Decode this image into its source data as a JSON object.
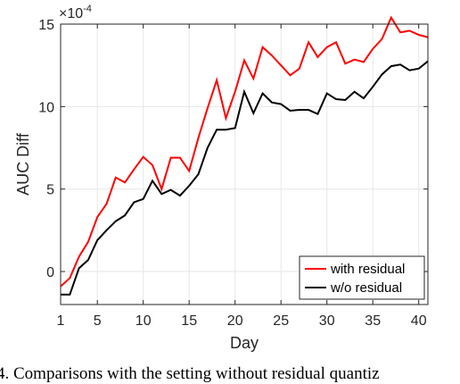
{
  "chart_data": {
    "type": "line",
    "title": "",
    "xlabel": "Day",
    "ylabel": "AUC Diff",
    "y_exponent_label": "×10",
    "y_exponent_power": "-4",
    "xlim": [
      1,
      41
    ],
    "ylim": [
      -2,
      15
    ],
    "x_ticks": [
      1,
      5,
      10,
      15,
      20,
      25,
      30,
      35,
      40
    ],
    "y_ticks": [
      0,
      5,
      10,
      15
    ],
    "grid": true,
    "legend_position": "bottom-right",
    "x": [
      1,
      2,
      3,
      4,
      5,
      6,
      7,
      8,
      9,
      10,
      11,
      12,
      13,
      14,
      15,
      16,
      17,
      18,
      19,
      20,
      21,
      22,
      23,
      24,
      25,
      26,
      27,
      28,
      29,
      30,
      31,
      32,
      33,
      34,
      35,
      36,
      37,
      38,
      39,
      40,
      41
    ],
    "series": [
      {
        "name": "with residual",
        "color": "#ff0000",
        "values": [
          -0.9,
          -0.4,
          0.9,
          1.8,
          3.3,
          4.1,
          5.7,
          5.4,
          6.2,
          6.95,
          6.45,
          5.0,
          6.9,
          6.9,
          6.1,
          8.1,
          9.9,
          11.6,
          9.3,
          10.9,
          12.8,
          11.7,
          13.6,
          13.1,
          12.5,
          11.9,
          12.3,
          13.9,
          13.0,
          13.6,
          13.9,
          12.6,
          12.85,
          12.7,
          13.5,
          14.1,
          15.4,
          14.5,
          14.6,
          14.35,
          14.2
        ]
      },
      {
        "name": "w/o residual",
        "color": "#000000",
        "values": [
          -1.4,
          -1.4,
          0.2,
          0.7,
          1.9,
          2.5,
          3.05,
          3.4,
          4.2,
          4.4,
          5.5,
          4.7,
          4.95,
          4.6,
          5.2,
          5.9,
          7.5,
          8.6,
          8.6,
          8.7,
          10.9,
          9.6,
          10.8,
          10.25,
          10.15,
          9.75,
          9.8,
          9.8,
          9.55,
          10.8,
          10.45,
          10.4,
          10.9,
          10.5,
          11.2,
          11.95,
          12.45,
          12.55,
          12.2,
          12.3,
          12.75
        ]
      }
    ]
  },
  "caption": {
    "text": "4.  Comparisons with the setting without residual quantiz"
  }
}
